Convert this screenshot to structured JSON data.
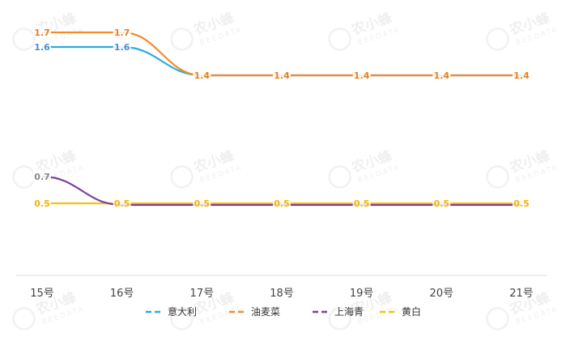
{
  "chart_data": {
    "type": "line",
    "categories": [
      "15号",
      "16号",
      "17号",
      "18号",
      "19号",
      "20号",
      "21号"
    ],
    "series": [
      {
        "name": "意大利",
        "color": "#29abe2",
        "values": [
          1.6,
          1.6,
          1.4,
          1.4,
          1.4,
          1.4,
          1.4
        ]
      },
      {
        "name": "油麦菜",
        "color": "#f28c28",
        "values": [
          1.7,
          1.7,
          1.4,
          1.4,
          1.4,
          1.4,
          1.4
        ]
      },
      {
        "name": "上海青",
        "color": "#7b3f9e",
        "values": [
          0.7,
          0.5,
          0.5,
          0.5,
          0.5,
          0.5,
          0.5
        ]
      },
      {
        "name": "黄白",
        "color": "#f5c400",
        "values": [
          0.5,
          0.5,
          0.5,
          0.5,
          0.5,
          0.5,
          0.5
        ]
      }
    ],
    "data_labels": [
      {
        "series": "意大利",
        "points": [
          0,
          1
        ],
        "text": [
          "1.6",
          "1.6"
        ]
      },
      {
        "series": "油麦菜",
        "points": [
          0,
          1,
          2,
          3,
          4,
          5,
          6
        ],
        "text": [
          "1.7",
          "1.7",
          "1.4",
          "1.4",
          "1.4",
          "1.4",
          "1.4"
        ]
      },
      {
        "series": "上海青",
        "points": [
          0
        ],
        "text": [
          "0.7"
        ]
      },
      {
        "series": "黄白",
        "points": [
          0,
          1,
          2,
          3,
          4,
          5,
          6
        ],
        "text": [
          "0.5",
          "0.5",
          "0.5",
          "0.5",
          "0.5",
          "0.5",
          "0.5"
        ]
      }
    ],
    "legend_position": "bottom",
    "grid": false,
    "xlabel": "",
    "ylabel": ""
  },
  "watermark": {
    "main": "农小蜂",
    "sub": "BEEDATA"
  }
}
